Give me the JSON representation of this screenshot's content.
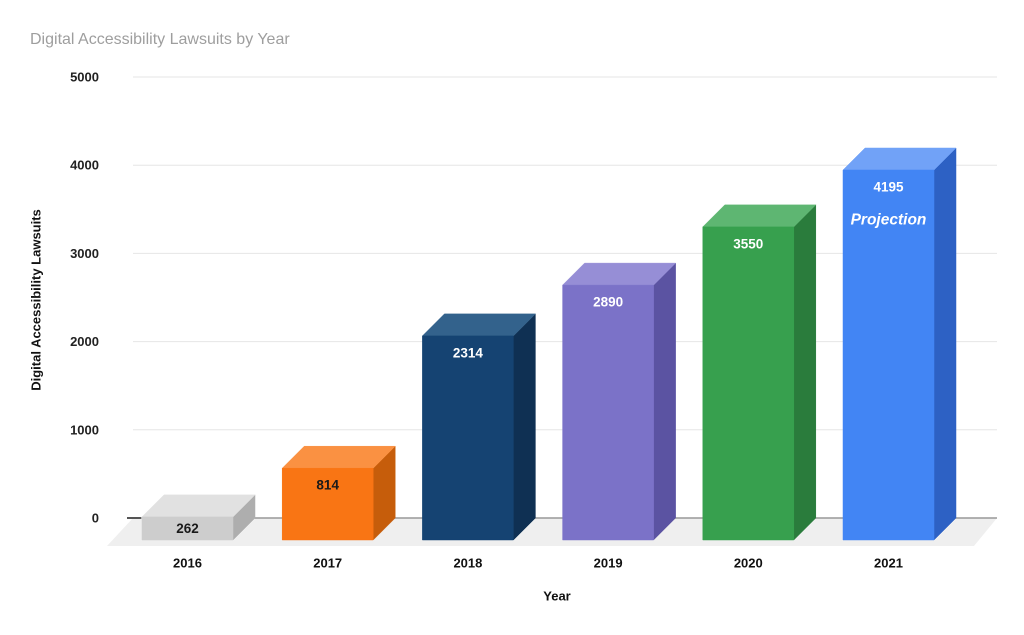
{
  "chart_data": {
    "type": "bar",
    "variant": "3d-column",
    "title": "Digital Accessibility Lawsuits by Year",
    "xlabel": "Year",
    "ylabel": "Digital Accessibility Lawsuits",
    "categories": [
      "2016",
      "2017",
      "2018",
      "2019",
      "2020",
      "2021"
    ],
    "values": [
      262,
      814,
      2314,
      2890,
      3550,
      4195
    ],
    "ylim": [
      0,
      5000
    ],
    "ytick_interval": 1000,
    "yticks": [
      0,
      1000,
      2000,
      3000,
      4000,
      5000
    ],
    "grid": "horizontal",
    "legend": "none",
    "title_color": "#9e9e9e",
    "annotations": [
      {
        "category": "2021",
        "text": "Projection"
      }
    ],
    "bars": [
      {
        "category": "2016",
        "value": 262,
        "label": "262",
        "label_color": "#1a1a1a",
        "front": "#cdcdcd",
        "top": "#e1e1e1",
        "side": "#aeaeae",
        "annotation": ""
      },
      {
        "category": "2017",
        "value": 814,
        "label": "814",
        "label_color": "#1a1a1a",
        "front": "#f97514",
        "top": "#fa9142",
        "side": "#c65d0b",
        "annotation": ""
      },
      {
        "category": "2018",
        "value": 2314,
        "label": "2314",
        "label_color": "#ffffff",
        "front": "#154372",
        "top": "#33628c",
        "side": "#0f3053",
        "annotation": ""
      },
      {
        "category": "2019",
        "value": 2890,
        "label": "2890",
        "label_color": "#ffffff",
        "front": "#7b72c8",
        "top": "#968ed6",
        "side": "#5b53a2",
        "annotation": ""
      },
      {
        "category": "2020",
        "value": 3550,
        "label": "3550",
        "label_color": "#ffffff",
        "front": "#37a04e",
        "top": "#5eb672",
        "side": "#2a7c3c",
        "annotation": ""
      },
      {
        "category": "2021",
        "value": 4195,
        "label": "4195",
        "label_color": "#ffffff",
        "front": "#4285f4",
        "top": "#71a2f7",
        "side": "#2d61c4",
        "annotation": "Projection"
      }
    ],
    "axis_colors": {
      "tick_label": "#222222",
      "category_label": "#111111",
      "gridline": "#e6e6e6",
      "baseline": "#999999",
      "axis_tick": "#555555",
      "floor": "#efefef"
    }
  }
}
